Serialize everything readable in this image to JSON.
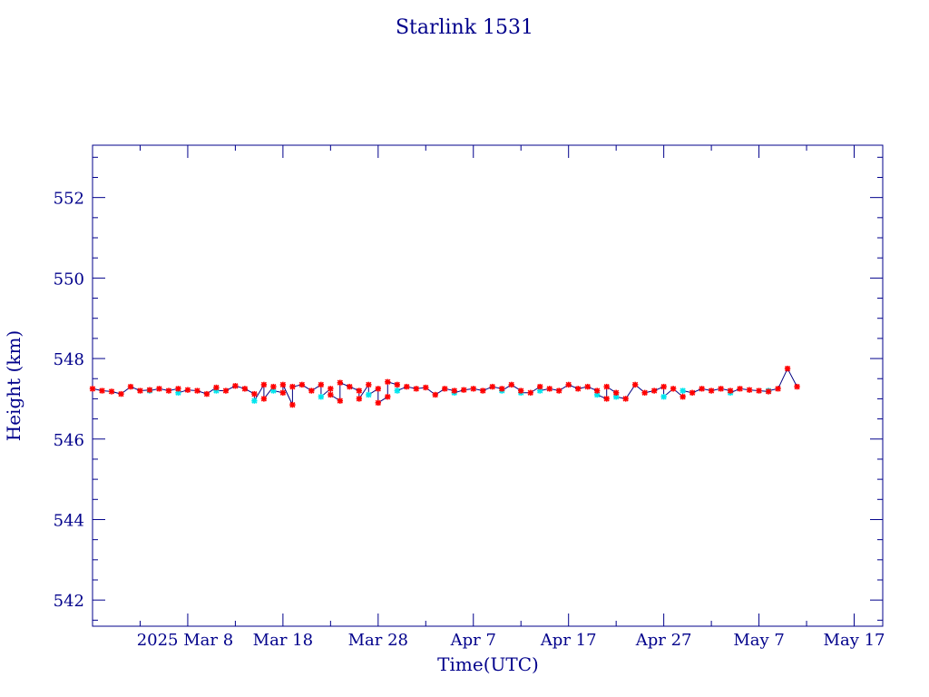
{
  "chart_data": {
    "type": "line",
    "title": "Starlink 1531",
    "xlabel": "Time(UTC)",
    "ylabel": "Height (km)",
    "x_start_label": "2025 Mar  8",
    "x_ticks": [
      {
        "date": "2025-03-08",
        "label": "2025 Mar  8"
      },
      {
        "date": "2025-03-18",
        "label": "Mar 18"
      },
      {
        "date": "2025-03-28",
        "label": "Mar 28"
      },
      {
        "date": "2025-04-07",
        "label": "Apr  7"
      },
      {
        "date": "2025-04-17",
        "label": "Apr 17"
      },
      {
        "date": "2025-04-27",
        "label": "Apr 27"
      },
      {
        "date": "2025-05-07",
        "label": "May  7"
      },
      {
        "date": "2025-05-17",
        "label": "May 17"
      }
    ],
    "xlim": [
      "2025-02-26",
      "2025-05-20"
    ],
    "ylim": [
      541.35,
      553.3
    ],
    "y_ticks": [
      542,
      544,
      546,
      548,
      550,
      552
    ],
    "grid": false,
    "colors": {
      "axis": "#00008b",
      "line": "#000080",
      "marker_red": "#ff0000",
      "marker_cyan": "#00e5ee"
    },
    "series": [
      {
        "marker_color": "#ff0000",
        "points": [
          [
            "2025-02-26",
            547.25
          ],
          [
            "2025-02-27",
            547.2
          ],
          [
            "2025-02-28",
            547.18
          ],
          [
            "2025-03-01",
            547.12
          ],
          [
            "2025-03-02",
            547.3
          ],
          [
            "2025-03-03",
            547.2
          ],
          [
            "2025-03-04",
            547.22
          ],
          [
            "2025-03-05",
            547.25
          ],
          [
            "2025-03-06",
            547.2
          ],
          [
            "2025-03-07",
            547.25
          ],
          [
            "2025-03-08",
            547.22
          ],
          [
            "2025-03-09",
            547.2
          ],
          [
            "2025-03-10",
            547.12
          ],
          [
            "2025-03-11",
            547.28
          ],
          [
            "2025-03-12",
            547.2
          ],
          [
            "2025-03-13",
            547.32
          ],
          [
            "2025-03-14",
            547.25
          ],
          [
            "2025-03-15",
            547.12
          ],
          [
            "2025-03-16",
            547.35
          ],
          [
            "2025-03-16",
            547.0
          ],
          [
            "2025-03-17",
            547.3
          ],
          [
            "2025-03-18",
            547.15
          ],
          [
            "2025-03-18",
            547.35
          ],
          [
            "2025-03-19",
            546.85
          ],
          [
            "2025-03-19",
            547.3
          ],
          [
            "2025-03-20",
            547.35
          ],
          [
            "2025-03-21",
            547.2
          ],
          [
            "2025-03-22",
            547.35
          ],
          [
            "2025-03-23",
            547.25
          ],
          [
            "2025-03-23",
            547.1
          ],
          [
            "2025-03-24",
            546.95
          ],
          [
            "2025-03-24",
            547.4
          ],
          [
            "2025-03-25",
            547.3
          ],
          [
            "2025-03-26",
            547.2
          ],
          [
            "2025-03-26",
            547.0
          ],
          [
            "2025-03-27",
            547.35
          ],
          [
            "2025-03-28",
            547.25
          ],
          [
            "2025-03-28",
            546.9
          ],
          [
            "2025-03-29",
            547.05
          ],
          [
            "2025-03-29",
            547.42
          ],
          [
            "2025-03-30",
            547.35
          ],
          [
            "2025-03-31",
            547.3
          ],
          [
            "2025-04-01",
            547.25
          ],
          [
            "2025-04-02",
            547.28
          ],
          [
            "2025-04-03",
            547.1
          ],
          [
            "2025-04-04",
            547.25
          ],
          [
            "2025-04-05",
            547.2
          ],
          [
            "2025-04-06",
            547.22
          ],
          [
            "2025-04-07",
            547.25
          ],
          [
            "2025-04-08",
            547.2
          ],
          [
            "2025-04-09",
            547.3
          ],
          [
            "2025-04-10",
            547.25
          ],
          [
            "2025-04-11",
            547.35
          ],
          [
            "2025-04-12",
            547.2
          ],
          [
            "2025-04-13",
            547.15
          ],
          [
            "2025-04-14",
            547.3
          ],
          [
            "2025-04-15",
            547.25
          ],
          [
            "2025-04-16",
            547.2
          ],
          [
            "2025-04-17",
            547.35
          ],
          [
            "2025-04-18",
            547.25
          ],
          [
            "2025-04-19",
            547.3
          ],
          [
            "2025-04-20",
            547.2
          ],
          [
            "2025-04-21",
            547.0
          ],
          [
            "2025-04-21",
            547.3
          ],
          [
            "2025-04-22",
            547.15
          ],
          [
            "2025-04-23",
            547.0
          ],
          [
            "2025-04-24",
            547.35
          ],
          [
            "2025-04-25",
            547.15
          ],
          [
            "2025-04-26",
            547.2
          ],
          [
            "2025-04-27",
            547.3
          ],
          [
            "2025-04-28",
            547.25
          ],
          [
            "2025-04-29",
            547.05
          ],
          [
            "2025-04-30",
            547.15
          ],
          [
            "2025-05-01",
            547.25
          ],
          [
            "2025-05-02",
            547.2
          ],
          [
            "2025-05-03",
            547.25
          ],
          [
            "2025-05-04",
            547.2
          ],
          [
            "2025-05-05",
            547.25
          ],
          [
            "2025-05-06",
            547.22
          ],
          [
            "2025-05-07",
            547.2
          ],
          [
            "2025-05-08",
            547.18
          ],
          [
            "2025-05-09",
            547.25
          ],
          [
            "2025-05-10",
            547.75
          ],
          [
            "2025-05-11",
            547.3
          ]
        ]
      },
      {
        "marker_color": "#00e5ee",
        "points": [
          [
            "2025-03-04",
            547.2
          ],
          [
            "2025-03-07",
            547.15
          ],
          [
            "2025-03-11",
            547.2
          ],
          [
            "2025-03-15",
            546.95
          ],
          [
            "2025-03-17",
            547.2
          ],
          [
            "2025-03-22",
            547.05
          ],
          [
            "2025-03-27",
            547.1
          ],
          [
            "2025-03-30",
            547.2
          ],
          [
            "2025-04-05",
            547.15
          ],
          [
            "2025-04-10",
            547.2
          ],
          [
            "2025-04-12",
            547.15
          ],
          [
            "2025-04-14",
            547.2
          ],
          [
            "2025-04-20",
            547.1
          ],
          [
            "2025-04-22",
            547.05
          ],
          [
            "2025-04-27",
            547.05
          ],
          [
            "2025-04-29",
            547.2
          ],
          [
            "2025-05-04",
            547.15
          ],
          [
            "2025-05-08",
            547.2
          ]
        ]
      }
    ]
  }
}
